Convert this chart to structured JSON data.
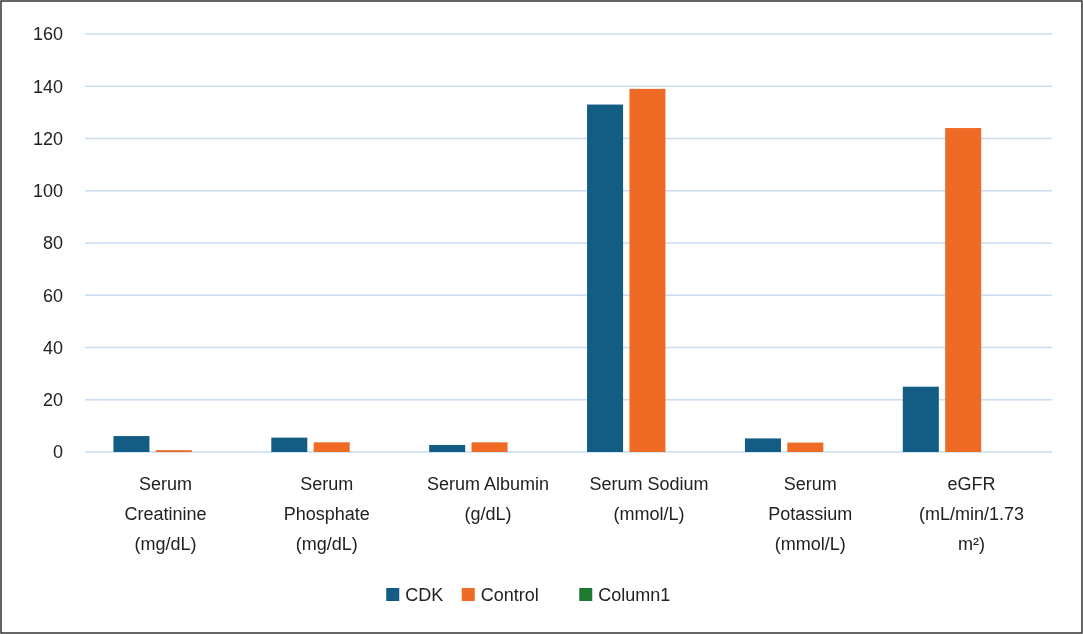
{
  "chart_data": {
    "type": "bar",
    "categories": [
      "Serum Creatinine (mg/dL)",
      "Serum Phosphate (mg/dL)",
      "Serum Albumin (g/dL)",
      "Serum Sodium (mmol/L)",
      "Serum Potassium (mmol/L)",
      "eGFR (mL/min/1.73 m²)"
    ],
    "series": [
      {
        "name": "CDK",
        "color": "#135d84",
        "values": [
          6.1,
          5.5,
          2.7,
          133,
          5.2,
          25
        ]
      },
      {
        "name": "Control",
        "color": "#ee6a25",
        "values": [
          0.7,
          3.7,
          3.7,
          139,
          3.6,
          124
        ]
      },
      {
        "name": "Column1",
        "color": "#1e7a30",
        "values": [
          null,
          null,
          null,
          null,
          null,
          null
        ]
      }
    ],
    "ylim": [
      0,
      160
    ],
    "yticks": [
      0,
      20,
      40,
      60,
      80,
      100,
      120,
      140,
      160
    ],
    "grid": "y",
    "legend": "bottom"
  }
}
